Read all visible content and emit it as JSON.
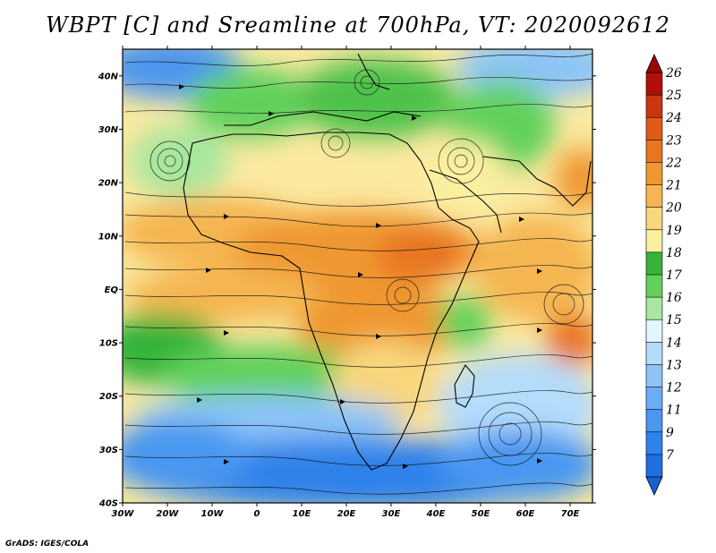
{
  "title": "WBPT [C] and Sreamline at 700hPa, VT: 2020092612",
  "credit": "GrADS: IGES/COLA",
  "colorbar": {
    "labels": [
      "7",
      "9",
      "11",
      "12",
      "13",
      "14",
      "15",
      "16",
      "17",
      "18",
      "19",
      "20",
      "21",
      "22",
      "23",
      "24",
      "25",
      "26"
    ],
    "colors": [
      "#1e6fe0",
      "#2f82ea",
      "#4a97f0",
      "#68adf5",
      "#8cc4f8",
      "#b4dcfb",
      "#e2f6ff",
      "#a7e79e",
      "#62d15c",
      "#36b43a",
      "#fbf0a0",
      "#f9d77d",
      "#f5b651",
      "#ef9830",
      "#e87520",
      "#df5a1a",
      "#cb3612",
      "#b01008"
    ]
  },
  "map": {
    "x_labels": [
      "30W",
      "20W",
      "10W",
      "0",
      "10E",
      "20E",
      "30E",
      "40E",
      "50E",
      "60E",
      "70E"
    ],
    "y_labels": [
      "40N",
      "30N",
      "20N",
      "10N",
      "EQ",
      "10S",
      "20S",
      "30S",
      "40S"
    ],
    "lon_range": [
      -30,
      75
    ],
    "lat_range": [
      -40,
      45
    ]
  },
  "chart_data": {
    "type": "heatmap",
    "title": "WBPT [C] and Sreamline at 700hPa, VT: 2020092612",
    "x_ticks": [
      "30W",
      "20W",
      "10W",
      "0",
      "10E",
      "20E",
      "30E",
      "40E",
      "50E",
      "60E",
      "70E"
    ],
    "y_ticks": [
      "40N",
      "30N",
      "20N",
      "10N",
      "EQ",
      "10S",
      "20S",
      "30S",
      "40S"
    ],
    "xlim": [
      -30,
      75
    ],
    "ylim": [
      -40,
      45
    ],
    "colorbar_levels": [
      7,
      9,
      11,
      12,
      13,
      14,
      15,
      16,
      17,
      18,
      19,
      20,
      21,
      22,
      23,
      24,
      25,
      26
    ]
  }
}
